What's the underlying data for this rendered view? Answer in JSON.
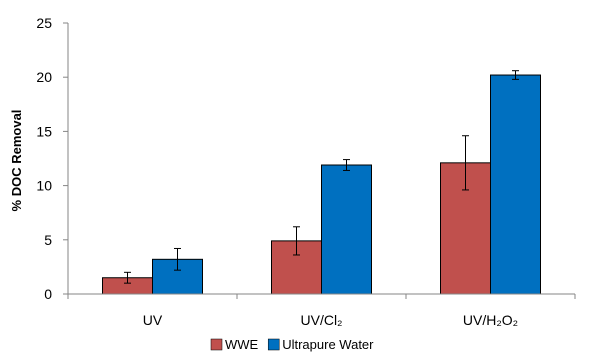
{
  "chart_data": {
    "type": "bar",
    "title": "",
    "xlabel": "",
    "ylabel": "% DOC Removal",
    "ylim": [
      0,
      25
    ],
    "yticks": [
      0,
      5,
      10,
      15,
      20,
      25
    ],
    "categories": [
      "UV",
      "UV/Cl₂",
      "UV/H₂O₂"
    ],
    "series": [
      {
        "name": "WWE",
        "color": "#c0504d",
        "values": [
          1.5,
          4.9,
          12.1
        ],
        "errors": [
          0.5,
          1.3,
          2.5
        ]
      },
      {
        "name": "Ultrapure Water",
        "color": "#0070c0",
        "values": [
          3.2,
          11.9,
          20.2
        ],
        "errors": [
          1.0,
          0.5,
          0.4
        ]
      }
    ],
    "grid": false,
    "legend": "bottom"
  }
}
